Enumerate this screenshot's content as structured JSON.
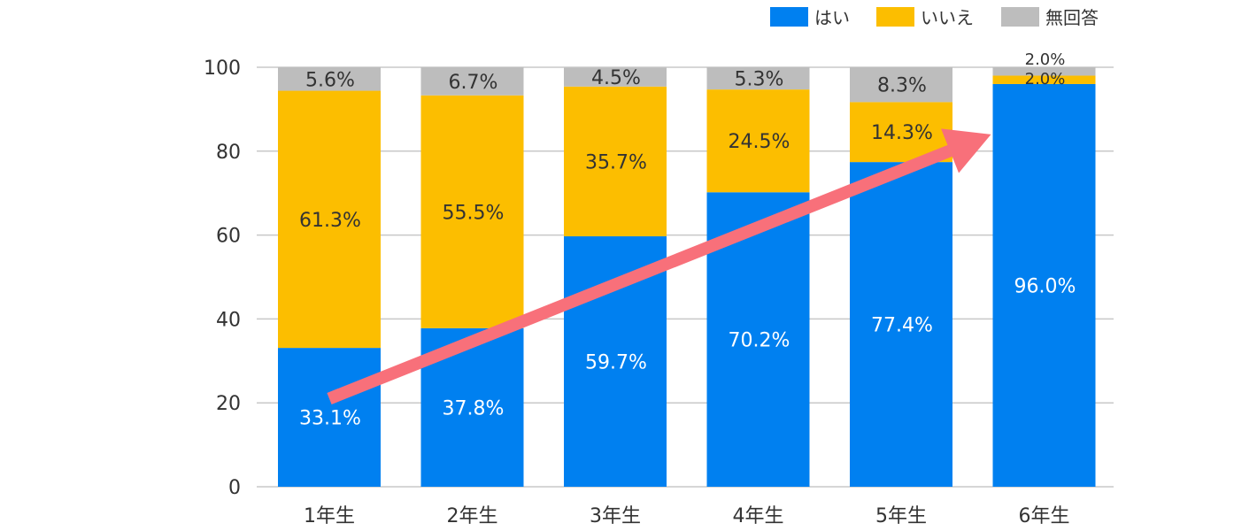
{
  "chart_data": {
    "type": "bar",
    "stacked": true,
    "categories": [
      "1年生",
      "2年生",
      "3年生",
      "4年生",
      "5年生",
      "6年生"
    ],
    "series": [
      {
        "name": "はい",
        "color": "#0080F0",
        "values": [
          33.1,
          37.8,
          59.7,
          70.2,
          77.4,
          96.0
        ],
        "labels": [
          "33.1%",
          "37.8%",
          "59.7%",
          "70.2%",
          "77.4%",
          "96.0%"
        ]
      },
      {
        "name": "いいえ",
        "color": "#FCBE00",
        "values": [
          61.3,
          55.5,
          35.7,
          24.5,
          14.3,
          2.0
        ],
        "labels": [
          "61.3%",
          "55.5%",
          "35.7%",
          "24.5%",
          "14.3%",
          "2.0%"
        ]
      },
      {
        "name": "無回答",
        "color": "#BDBDBD",
        "values": [
          5.6,
          6.7,
          4.5,
          5.3,
          8.3,
          2.0
        ],
        "labels": [
          "5.6%",
          "6.7%",
          "4.5%",
          "5.3%",
          "8.3%",
          "2.0%"
        ]
      }
    ],
    "ylim": [
      0,
      100
    ],
    "yticks": [
      "0",
      "20",
      "40",
      "60",
      "80",
      "100"
    ],
    "grid": true,
    "legend_position": "top-right",
    "annotation": {
      "type": "arrow",
      "color": "#F8707A",
      "from": {
        "category": "1年生",
        "y": 21
      },
      "to": {
        "category": "6年生",
        "y": 84
      }
    }
  }
}
